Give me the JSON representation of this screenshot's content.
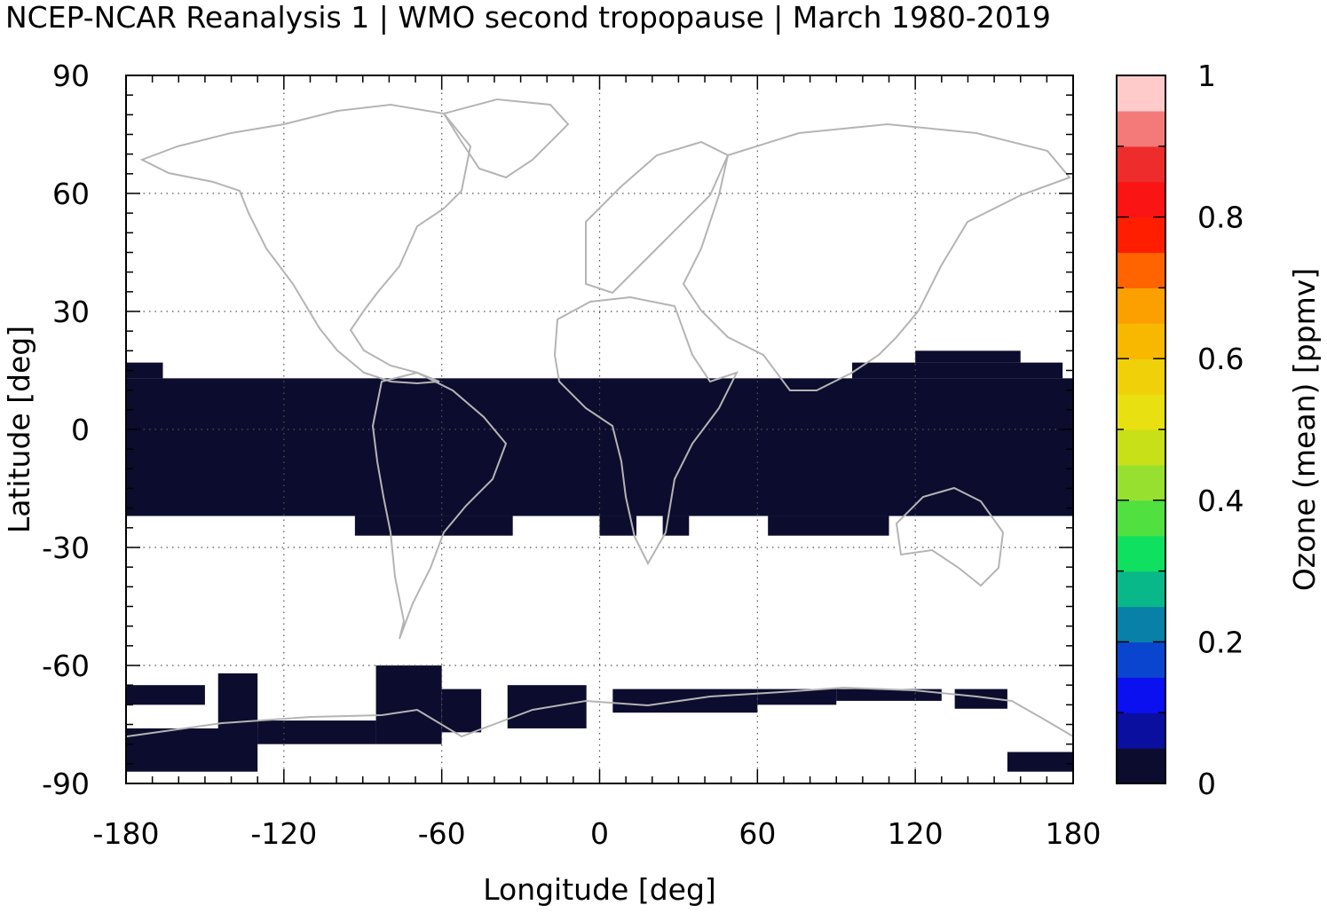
{
  "chart_data": {
    "type": "heatmap",
    "title": "NCEP-NCAR Reanalysis 1 | WMO second tropopause | March 1980-2019",
    "xlabel": "Longitude [deg]",
    "ylabel": "Latitude [deg]",
    "xlim": [
      -180,
      180
    ],
    "ylim": [
      -90,
      90
    ],
    "xticks": [
      -180,
      -120,
      -60,
      0,
      60,
      120,
      180
    ],
    "yticks": [
      90,
      60,
      30,
      0,
      -30,
      -60,
      -90
    ],
    "grid": true,
    "colorbar": {
      "label": "Ozone (mean) [ppmv]",
      "range": [
        0,
        1
      ],
      "ticks": [
        0,
        0.2,
        0.4,
        0.6,
        0.8,
        1
      ],
      "tick_labels": [
        "0",
        "0.2",
        "0.4",
        "0.6",
        "0.8",
        "1"
      ],
      "colors": [
        "#0c0c2e",
        "#0a0fa0",
        "#0a10f0",
        "#0a45d0",
        "#0880a8",
        "#08b888",
        "#10e060",
        "#50e040",
        "#98e030",
        "#c8e018",
        "#e8e010",
        "#f0d008",
        "#f8b800",
        "#fca000",
        "#ff6400",
        "#ff1e00",
        "#fa1414",
        "#ee2c2c",
        "#f47a7a",
        "#fecaca"
      ]
    },
    "cell_value_ppmv": 0.02,
    "cell_color": "#0c0c2e",
    "coastline_color": "#b4b4b4",
    "cells_description": "dark cells (approx. 0 ppmv) form a tropical band roughly 20S-15N and a band near 60-85S; white cells have no data",
    "regions": [
      {
        "lon": [
          -180,
          180
        ],
        "lat": [
          -22,
          13
        ]
      },
      {
        "lon": [
          -180,
          -166
        ],
        "lat": [
          13,
          17
        ]
      },
      {
        "lon": [
          96,
          176
        ],
        "lat": [
          13,
          17
        ]
      },
      {
        "lon": [
          120,
          160
        ],
        "lat": [
          17,
          20
        ]
      },
      {
        "lon": [
          -93,
          -33
        ],
        "lat": [
          -27,
          -22
        ]
      },
      {
        "lon": [
          0,
          14
        ],
        "lat": [
          -27,
          -22
        ]
      },
      {
        "lon": [
          24,
          34
        ],
        "lat": [
          -27,
          -22
        ]
      },
      {
        "lon": [
          64,
          110
        ],
        "lat": [
          -27,
          -22
        ]
      },
      {
        "lon": [
          -180,
          -150
        ],
        "lat": [
          -70,
          -65
        ]
      },
      {
        "lon": [
          -145,
          -130
        ],
        "lat": [
          -80,
          -62
        ]
      },
      {
        "lon": [
          -180,
          -130
        ],
        "lat": [
          -87,
          -76
        ]
      },
      {
        "lon": [
          -130,
          -85
        ],
        "lat": [
          -80,
          -74
        ]
      },
      {
        "lon": [
          -85,
          -60
        ],
        "lat": [
          -80,
          -60
        ]
      },
      {
        "lon": [
          -60,
          -45
        ],
        "lat": [
          -77,
          -66
        ]
      },
      {
        "lon": [
          -35,
          -5
        ],
        "lat": [
          -76,
          -65
        ]
      },
      {
        "lon": [
          5,
          60
        ],
        "lat": [
          -72,
          -66
        ]
      },
      {
        "lon": [
          60,
          90
        ],
        "lat": [
          -70,
          -66
        ]
      },
      {
        "lon": [
          90,
          130
        ],
        "lat": [
          -69,
          -66
        ]
      },
      {
        "lon": [
          135,
          155
        ],
        "lat": [
          -71,
          -66
        ]
      },
      {
        "lon": [
          155,
          180
        ],
        "lat": [
          -87,
          -82
        ]
      }
    ]
  }
}
